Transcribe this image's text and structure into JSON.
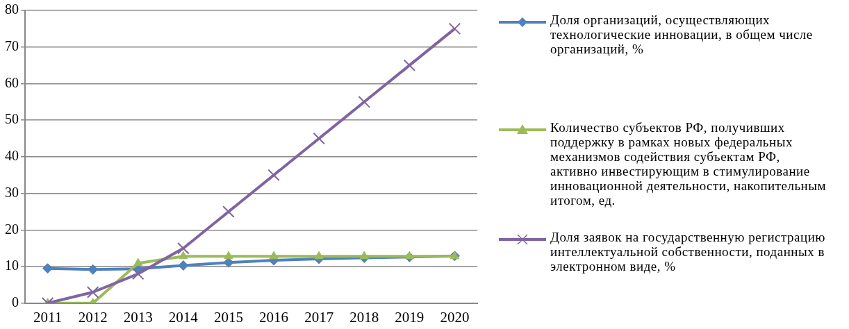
{
  "chart_data": {
    "type": "line",
    "categories": [
      "2011",
      "2012",
      "2013",
      "2014",
      "2015",
      "2016",
      "2017",
      "2018",
      "2019",
      "2020"
    ],
    "ylim": [
      0,
      80
    ],
    "yticks": [
      0,
      10,
      20,
      30,
      40,
      50,
      60,
      70,
      80
    ],
    "grid": "y",
    "legend": "right",
    "series": [
      {
        "name": "Доля организаций, осуществляющих технологические инновации, в общем числе организаций, %",
        "color": "#4f81bd",
        "marker": "diamond",
        "values": [
          9.5,
          9.2,
          9.4,
          10.3,
          11.1,
          11.7,
          12.1,
          12.4,
          12.6,
          12.9
        ]
      },
      {
        "name": "Количество субъектов РФ, получивших поддержку в рамках новых федеральных механизмов содействия субъектам РФ, активно инвестирующим в стимулирование инновационной деятельности, накопительным итогом, ед.",
        "color": "#9bbb59",
        "marker": "triangle",
        "values": [
          0,
          0,
          10.9,
          12.8,
          12.8,
          12.8,
          12.8,
          12.8,
          12.8,
          12.8
        ]
      },
      {
        "name": "Доля заявок на государственную регистрацию интеллектуальной собственности, поданных в электронном виде, %",
        "color": "#8064a2",
        "marker": "cross",
        "values": [
          0,
          3,
          8,
          15,
          25,
          35,
          45,
          55,
          65,
          75
        ]
      }
    ]
  }
}
